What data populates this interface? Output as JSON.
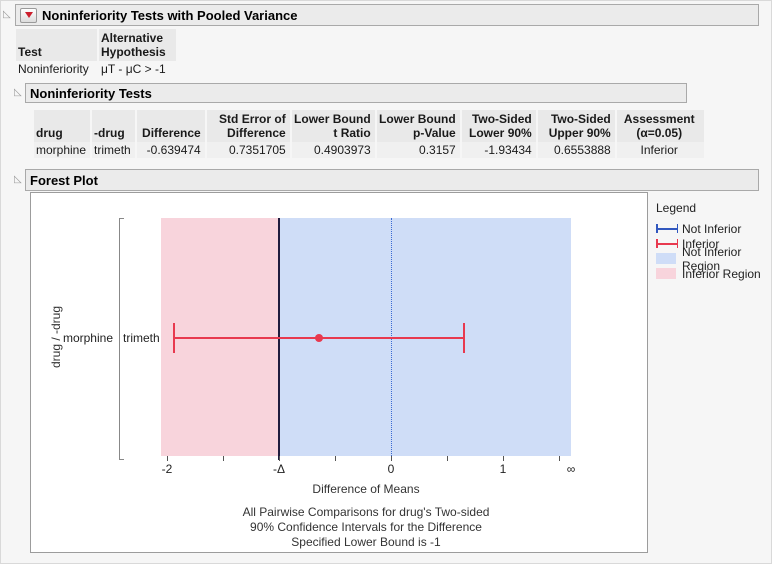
{
  "sections": {
    "pooled": {
      "title": "Noninferiority Tests with Pooled Variance"
    },
    "tests": {
      "title": "Noninferiority Tests"
    },
    "forest": {
      "title": "Forest Plot"
    }
  },
  "test_table": {
    "columns": [
      "Test",
      "Alternative Hypothesis"
    ],
    "rows": [
      [
        "Noninferiority",
        "μT - μC > -1"
      ]
    ]
  },
  "results_table": {
    "columns": [
      "drug",
      "-drug",
      "Difference",
      "Std Error of Difference",
      "Lower Bound t Ratio",
      "Lower Bound p-Value",
      "Two-Sided Lower 90%",
      "Two-Sided Upper 90%",
      "Assessment (α=0.05)"
    ],
    "rows": [
      [
        "morphine",
        "trimeth",
        "-0.639474",
        "0.7351705",
        "0.4903973",
        "0.3157",
        "-1.93434",
        "0.6553888",
        "Inferior"
      ]
    ]
  },
  "colors": {
    "inferior": "#e8394f",
    "not_inferior": "#3157be",
    "inferior_region": "#f8d4dc",
    "not_inferior_region": "#cfddf7",
    "delta_line": "#201c3e",
    "zero_line": "#3a6ad4",
    "red_triangle_menu": "#cc1f2d"
  },
  "chart_data": {
    "type": "forest",
    "title": "Forest Plot",
    "xlabel": "Difference of Means",
    "ylabel": "drug / -drug",
    "axis": {
      "min": -2.054,
      "max": 1.607
    },
    "delta_value": -1,
    "zero_value": 0,
    "major_ticks": [
      {
        "v": -2,
        "label": "-2"
      },
      {
        "v": -1,
        "label": "-Δ"
      },
      {
        "v": 0,
        "label": "0"
      },
      {
        "v": 1,
        "label": "1"
      },
      {
        "v": 1.607,
        "label": "∞"
      }
    ],
    "minor_ticks": [
      -2,
      -1.5,
      -1,
      -0.5,
      0,
      0.5,
      1,
      1.5
    ],
    "series": [
      {
        "drug": "morphine",
        "minus_drug": "trimeth",
        "estimate": -0.639474,
        "lower": -1.93434,
        "upper": 0.6553888,
        "assessment": "Inferior"
      }
    ],
    "caption_lines": [
      "All Pairwise Comparisons for drug's Two-sided",
      "90% Confidence Intervals for the Difference",
      "Specified Lower Bound is -1"
    ],
    "legend": {
      "title": "Legend",
      "items": [
        {
          "label": "Not Inferior",
          "glyph": "blue-errorbar"
        },
        {
          "label": "Inferior",
          "glyph": "red-errorbar"
        },
        {
          "label": "Not Inferior Region",
          "glyph": "blue-region"
        },
        {
          "label": "Inferior Region",
          "glyph": "red-region"
        }
      ]
    }
  }
}
